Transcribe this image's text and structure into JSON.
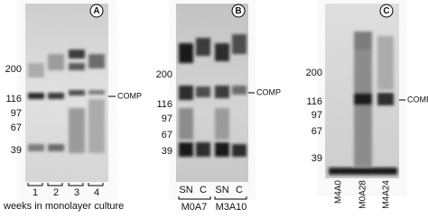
{
  "panels": [
    {
      "label": "A",
      "markers": [
        "200",
        "116",
        "97",
        "67",
        "39"
      ],
      "band_label": "COMP",
      "lanes": [
        "1",
        "2",
        "3",
        "4"
      ],
      "caption": "weeks in monolayer culture"
    },
    {
      "label": "B",
      "markers": [
        "200",
        "116",
        "97",
        "67",
        "39"
      ],
      "band_label": "COMP",
      "lanes": [
        "SN",
        "C",
        "SN",
        "C"
      ],
      "groups": [
        "M0A7",
        "M3A10"
      ]
    },
    {
      "label": "C",
      "markers": [
        "200",
        "116",
        "97",
        "67",
        "39"
      ],
      "band_label": "COMP",
      "lanes": [
        "M4A0",
        "M0A28",
        "M4A24"
      ]
    }
  ]
}
